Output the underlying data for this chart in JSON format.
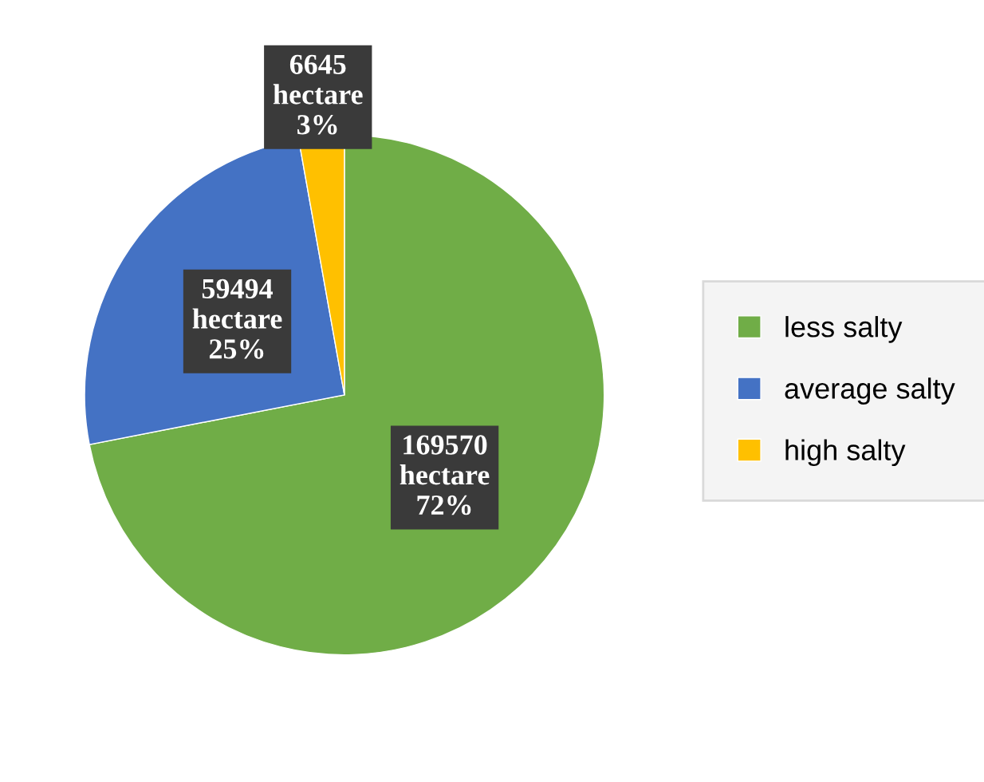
{
  "chart_data": {
    "type": "pie",
    "categories": [
      "less salty",
      "average salty",
      "high salty"
    ],
    "values": [
      169570,
      59494,
      6645
    ],
    "value_labels": [
      "169570\nhectare\n72%",
      "59494\nhectare\n25%",
      "6645\nhectare\n3%"
    ],
    "colors": [
      "#70ad47",
      "#4472c4",
      "#ffc000"
    ],
    "legend": "right"
  }
}
